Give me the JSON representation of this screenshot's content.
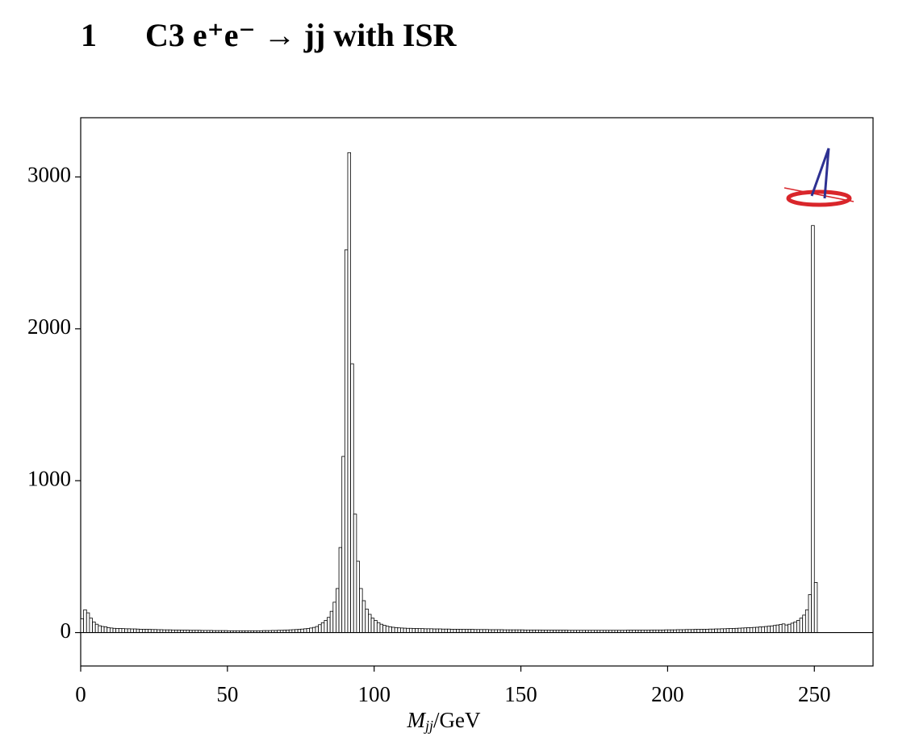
{
  "chart_data": {
    "type": "histogram",
    "section": "1",
    "title": "C3 e⁺e⁻ → jj with ISR",
    "x_label": {
      "symbol": "M",
      "subscript": "jj",
      "unit": "/GeV"
    },
    "bins": [
      0,
      1,
      2,
      3,
      4,
      5,
      6,
      7,
      8,
      9,
      10,
      11,
      12,
      13,
      14,
      15,
      16,
      17,
      18,
      19,
      20,
      21,
      22,
      23,
      24,
      25,
      26,
      27,
      28,
      29,
      30,
      31,
      32,
      33,
      34,
      35,
      36,
      37,
      38,
      39,
      40,
      41,
      42,
      43,
      44,
      45,
      46,
      47,
      48,
      49,
      50,
      51,
      52,
      53,
      54,
      55,
      56,
      57,
      58,
      59,
      60,
      61,
      62,
      63,
      64,
      65,
      66,
      67,
      68,
      69,
      70,
      71,
      72,
      73,
      74,
      75,
      76,
      77,
      78,
      79,
      80,
      81,
      82,
      83,
      84,
      85,
      86,
      87,
      88,
      89,
      90,
      91,
      92,
      93,
      94,
      95,
      96,
      97,
      98,
      99,
      100,
      101,
      102,
      103,
      104,
      105,
      106,
      107,
      108,
      109,
      110,
      111,
      112,
      113,
      114,
      115,
      116,
      117,
      118,
      119,
      120,
      121,
      122,
      123,
      124,
      125,
      126,
      127,
      128,
      129,
      130,
      131,
      132,
      133,
      134,
      135,
      136,
      137,
      138,
      139,
      140,
      141,
      142,
      143,
      144,
      145,
      146,
      147,
      148,
      149,
      150,
      151,
      152,
      153,
      154,
      155,
      156,
      157,
      158,
      159,
      160,
      161,
      162,
      163,
      164,
      165,
      166,
      167,
      168,
      169,
      170,
      171,
      172,
      173,
      174,
      175,
      176,
      177,
      178,
      179,
      180,
      181,
      182,
      183,
      184,
      185,
      186,
      187,
      188,
      189,
      190,
      191,
      192,
      193,
      194,
      195,
      196,
      197,
      198,
      199,
      200,
      201,
      202,
      203,
      204,
      205,
      206,
      207,
      208,
      209,
      210,
      211,
      212,
      213,
      214,
      215,
      216,
      217,
      218,
      219,
      220,
      221,
      222,
      223,
      224,
      225,
      226,
      227,
      228,
      229,
      230,
      231,
      232,
      233,
      234,
      235,
      236,
      237,
      238,
      239,
      240,
      241,
      242,
      243,
      244,
      245,
      246,
      247,
      248,
      249,
      250,
      251
    ],
    "counts": [
      90,
      150,
      130,
      95,
      70,
      55,
      45,
      40,
      38,
      32,
      30,
      28,
      27,
      27,
      26,
      25,
      25,
      24,
      24,
      23,
      22,
      22,
      21,
      21,
      20,
      20,
      19,
      19,
      18,
      18,
      18,
      17,
      17,
      17,
      16,
      16,
      16,
      15,
      15,
      15,
      15,
      14,
      14,
      14,
      14,
      13,
      13,
      13,
      13,
      13,
      12,
      12,
      12,
      12,
      12,
      12,
      12,
      12,
      12,
      12,
      12,
      12,
      13,
      13,
      13,
      14,
      14,
      15,
      15,
      16,
      17,
      18,
      19,
      20,
      21,
      23,
      25,
      27,
      30,
      34,
      40,
      52,
      65,
      80,
      100,
      140,
      200,
      290,
      560,
      1160,
      2520,
      3160,
      1770,
      780,
      470,
      290,
      210,
      155,
      120,
      95,
      80,
      65,
      55,
      48,
      42,
      38,
      35,
      33,
      31,
      30,
      29,
      28,
      28,
      27,
      27,
      26,
      26,
      25,
      25,
      25,
      24,
      24,
      24,
      23,
      23,
      23,
      22,
      22,
      22,
      22,
      21,
      21,
      21,
      21,
      20,
      20,
      20,
      20,
      20,
      19,
      19,
      19,
      19,
      19,
      18,
      18,
      18,
      18,
      18,
      18,
      18,
      17,
      17,
      17,
      17,
      17,
      17,
      16,
      16,
      16,
      16,
      16,
      16,
      16,
      16,
      16,
      15,
      15,
      15,
      15,
      15,
      15,
      15,
      15,
      15,
      15,
      15,
      15,
      15,
      15,
      15,
      15,
      15,
      15,
      15,
      15,
      16,
      16,
      16,
      16,
      16,
      16,
      16,
      16,
      17,
      17,
      17,
      17,
      17,
      18,
      18,
      18,
      18,
      19,
      19,
      19,
      20,
      20,
      20,
      21,
      21,
      21,
      22,
      22,
      23,
      23,
      24,
      24,
      25,
      25,
      26,
      27,
      27,
      28,
      29,
      30,
      31,
      32,
      33,
      34,
      35,
      37,
      38,
      40,
      42,
      44,
      47,
      50,
      53,
      57,
      50,
      55,
      62,
      70,
      80,
      95,
      115,
      150,
      250,
      2680,
      330
    ],
    "color": "#ffffff",
    "edge_color": "#000000",
    "xlim": [
      0,
      270
    ],
    "xticks": [
      0,
      50,
      100,
      150,
      200,
      250
    ],
    "ylim": [
      -220,
      3390
    ],
    "yticks": [
      0,
      1000,
      2000,
      3000
    ]
  }
}
